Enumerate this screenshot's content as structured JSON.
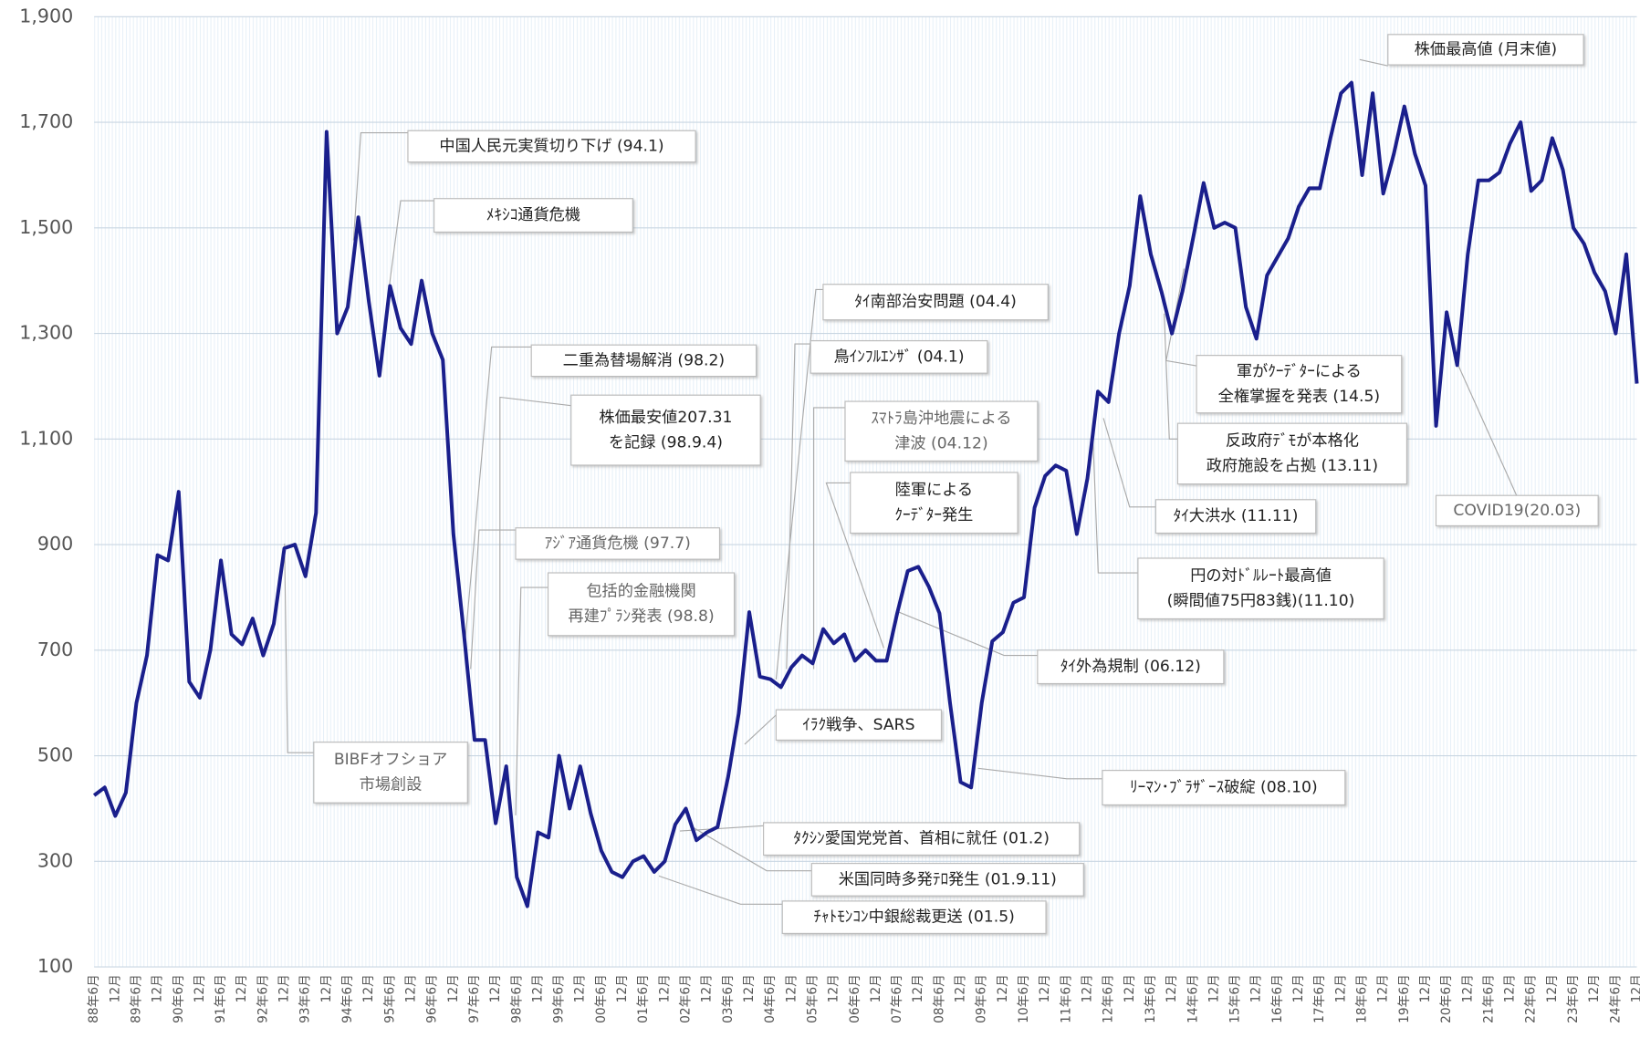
{
  "chart_data": {
    "type": "line",
    "color": "#1a1f8c",
    "grid": true,
    "ylim": [
      100,
      1900
    ],
    "yticks": [
      100,
      300,
      500,
      700,
      900,
      {
        "value": 1100,
        "label": "1,100"
      },
      {
        "value": 1300,
        "label": "1,300"
      },
      {
        "value": 1500,
        "label": "1,500"
      },
      {
        "value": 1700,
        "label": "1,700"
      },
      {
        "value": 1900,
        "label": "1,900"
      }
    ],
    "categories": [
      "88年6月",
      null,
      "12月",
      null,
      "89年6月",
      null,
      "12月",
      null,
      "90年6月",
      null,
      "12月",
      null,
      "91年6月",
      null,
      "12月",
      null,
      "92年6月",
      null,
      "12月",
      null,
      "93年6月",
      null,
      "12月",
      null,
      "94年6月",
      null,
      "12月",
      null,
      "95年6月",
      null,
      "12月",
      null,
      "96年6月",
      null,
      "12月",
      null,
      "97年6月",
      null,
      "12月",
      null,
      "98年6月",
      null,
      "12月",
      null,
      "99年6月",
      null,
      "12月",
      null,
      "00年6月",
      null,
      "12月",
      null,
      "01年6月",
      null,
      "12月",
      null,
      "02年6月",
      null,
      "12月",
      null,
      "03年6月",
      null,
      "12月",
      null,
      "04年6月",
      null,
      "12月",
      null,
      "05年6月",
      null,
      "12月",
      null,
      "06年6月",
      null,
      "12月",
      null,
      "07年6月",
      null,
      "12月",
      null,
      "08年6月",
      null,
      "12月",
      null,
      "09年6月",
      null,
      "12月",
      null,
      "10年6月",
      null,
      "12月",
      null,
      "11年6月",
      null,
      "12月",
      null,
      "12年6月",
      null,
      "12月",
      null,
      "13年6月",
      null,
      "12月",
      null,
      "14年6月",
      null,
      "12月",
      null,
      "15年6月",
      null,
      "12月",
      null,
      "16年6月",
      null,
      "12月",
      null,
      "17年6月",
      null,
      "12月",
      null,
      "18年6月",
      null,
      "12月",
      null,
      "19年6月",
      null,
      "12月",
      null,
      "20年6月",
      null,
      "12月",
      null,
      "21年6月",
      null,
      "12月",
      null,
      "22年6月",
      null,
      "12月",
      null,
      "23年6月",
      null,
      "12月",
      null,
      "24年6月",
      null,
      "12月"
    ],
    "values": [
      425,
      440,
      386,
      430,
      600,
      690,
      880,
      870,
      1000,
      640,
      610,
      700,
      870,
      730,
      711,
      760,
      690,
      750,
      893,
      900,
      840,
      960,
      1682,
      1300,
      1350,
      1520,
      1360,
      1220,
      1390,
      1310,
      1280,
      1400,
      1300,
      1250,
      920,
      730,
      530,
      530,
      372,
      480,
      270,
      215,
      355,
      345,
      500,
      400,
      480,
      390,
      320,
      280,
      270,
      300,
      310,
      280,
      300,
      370,
      400,
      340,
      355,
      365,
      460,
      580,
      772,
      650,
      645,
      630,
      668,
      690,
      675,
      740,
      713,
      730,
      680,
      700,
      680,
      680,
      770,
      850,
      858,
      820,
      770,
      600,
      450,
      440,
      600,
      717,
      734,
      790,
      800,
      970,
      1030,
      1050,
      1040,
      920,
      1025,
      1190,
      1170,
      1300,
      1390,
      1560,
      1450,
      1380,
      1300,
      1380,
      1480,
      1585,
      1500,
      1510,
      1500,
      1350,
      1290,
      1410,
      1445,
      1480,
      1540,
      1575,
      1575,
      1670,
      1755,
      1775,
      1600,
      1755,
      1565,
      1640,
      1730,
      1640,
      1580,
      1125,
      1340,
      1240,
      1450,
      1590,
      1590,
      1605,
      1660,
      1700,
      1570,
      1590,
      1670,
      1610,
      1500,
      1470,
      1415,
      1380,
      1300,
      1450,
      1205
    ],
    "annotations": [
      {
        "lines": [
          "中国人民元実質切り下げ (94.1)"
        ]
      },
      {
        "lines": [
          "ﾒｷｼｺ通貨危機"
        ]
      },
      {
        "lines": [
          "二重為替場解消 (98.2)"
        ]
      },
      {
        "lines": [
          "株価最安値207.31",
          "を記録 (98.9.4)"
        ]
      },
      {
        "lines": [
          "ｱｼﾞｱ通貨危機 (97.7)"
        ]
      },
      {
        "lines": [
          "包括的金融機関",
          "再建ﾌﾟﾗﾝ発表 (98.8)"
        ]
      },
      {
        "lines": [
          "BIBFオフショア",
          "市場創設"
        ]
      },
      {
        "lines": [
          "ｲﾗｸ戦争、SARS"
        ]
      },
      {
        "lines": [
          "ﾀｸｼﾝ愛国党党首、首相に就任 (01.2)"
        ]
      },
      {
        "lines": [
          "米国同時多発ﾃﾛ発生 (01.9.11)"
        ]
      },
      {
        "lines": [
          "ﾁｬﾄﾓﾝｺﾝ中銀総裁更送 (01.5)"
        ]
      },
      {
        "lines": [
          "ﾀｲ南部治安問題 (04.4)"
        ]
      },
      {
        "lines": [
          "鳥ｲﾝﾌﾙｴﾝｻﾞ (04.1)"
        ]
      },
      {
        "lines": [
          "ｽﾏﾄﾗ島沖地震による",
          "津波 (04.12)"
        ]
      },
      {
        "lines": [
          "陸軍による",
          "ｸｰﾃﾞﾀｰ発生"
        ]
      },
      {
        "lines": [
          "ﾀｲ外為規制 (06.12)"
        ]
      },
      {
        "lines": [
          "ﾘｰﾏﾝ･ﾌﾞﾗｻﾞｰｽ破綻 (08.10)"
        ]
      },
      {
        "lines": [
          "円の対ﾄﾞﾙﾚｰﾄ最高値",
          "(瞬間値75円83銭)(11.10)"
        ]
      },
      {
        "lines": [
          "ﾀｲ大洪水 (11.11)"
        ]
      },
      {
        "lines": [
          "反政府ﾃﾞﾓが本格化",
          "政府施設を占拠 (13.11)"
        ]
      },
      {
        "lines": [
          "軍がｸｰﾃﾞﾀｰによる",
          "全権掌握を発表 (14.5)"
        ]
      },
      {
        "lines": [
          "COVID19(20.03)"
        ]
      },
      {
        "lines": [
          "株価最高値 (月末値)"
        ]
      }
    ]
  }
}
